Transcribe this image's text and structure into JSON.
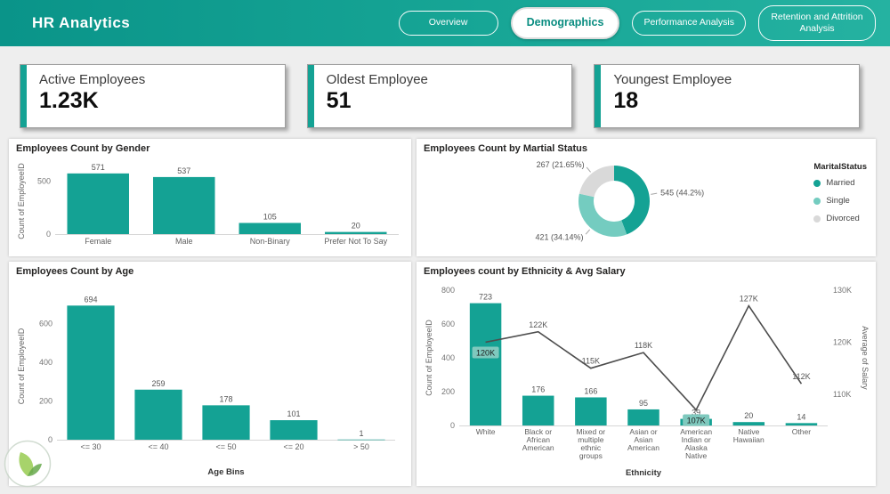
{
  "header": {
    "title": "HR Analytics",
    "tabs": [
      {
        "label": "Overview",
        "active": false
      },
      {
        "label": "Demographics",
        "active": true
      },
      {
        "label": "Performance Analysis",
        "active": false
      },
      {
        "label": "Retention and Attrition Analysis",
        "active": false
      }
    ]
  },
  "kpi_cards": [
    {
      "label": "Active Employees",
      "value": "1.23K"
    },
    {
      "label": "Oldest Employee",
      "value": "51"
    },
    {
      "label": "Youngest Employee",
      "value": "18"
    }
  ],
  "colors": {
    "teal": "#14A294",
    "teal_light": "#74CCC0",
    "gray_slice": "#D9D9D9",
    "line": "#4D4D4D",
    "chip_bg": "#7FC9BE"
  },
  "chart_data": [
    {
      "id": "gender",
      "type": "bar",
      "title": "Employees Count by Gender",
      "ylabel": "Count of EmployeeID",
      "categories": [
        "Female",
        "Male",
        "Non-Binary",
        "Prefer Not To Say"
      ],
      "values": [
        571,
        537,
        105,
        20
      ],
      "yticks": [
        0,
        500
      ],
      "ymax": 620
    },
    {
      "id": "marital",
      "type": "donut",
      "title": "Employees Count by Martial Status",
      "legend_title": "MaritalStatus",
      "legend_position": "right",
      "slices": [
        {
          "name": "Married",
          "value": 545,
          "pct": 44.2,
          "label": "545 (44.2%)"
        },
        {
          "name": "Single",
          "value": 421,
          "pct": 34.14,
          "label": "421 (34.14%)"
        },
        {
          "name": "Divorced",
          "value": 267,
          "pct": 21.65,
          "label": "267 (21.65%)"
        }
      ]
    },
    {
      "id": "age",
      "type": "bar",
      "title": "Employees Count by Age",
      "ylabel": "Count of EmployeeID",
      "xlabel": "Age Bins",
      "categories": [
        "<= 30",
        "<= 40",
        "<= 50",
        "<= 20",
        "> 50"
      ],
      "values": [
        694,
        259,
        178,
        101,
        1
      ],
      "yticks": [
        0,
        200,
        400,
        600
      ],
      "ymax": 760
    },
    {
      "id": "ethnicity",
      "type": "combo",
      "title": "Employees count by Ethnicity & Avg Salary",
      "ylabel": "Count of EmployeeID",
      "y2label": "Average of Salary",
      "xlabel": "Ethnicity",
      "categories": [
        "White",
        "Black or African American",
        "Mixed or multiple ethnic groups",
        "Asian or Asian American",
        "American Indian or Alaska Native",
        "Native Hawaiian",
        "Other"
      ],
      "bar_values": [
        723,
        176,
        166,
        95,
        39,
        20,
        14
      ],
      "line_values_k": [
        120,
        122,
        115,
        118,
        107,
        127,
        112
      ],
      "line_labels": [
        "120K",
        "122K",
        "115K",
        "118K",
        "107K",
        "127K",
        "112K"
      ],
      "highlight_indexes": [
        0,
        4
      ],
      "yticks": [
        0,
        200,
        400,
        600,
        800
      ],
      "ymax": 800,
      "y2ticks": [
        {
          "label": "110K",
          "value_k": 110
        },
        {
          "label": "120K",
          "value_k": 120
        },
        {
          "label": "130K",
          "value_k": 130
        }
      ],
      "y2_domain_k": [
        104,
        130
      ]
    }
  ]
}
